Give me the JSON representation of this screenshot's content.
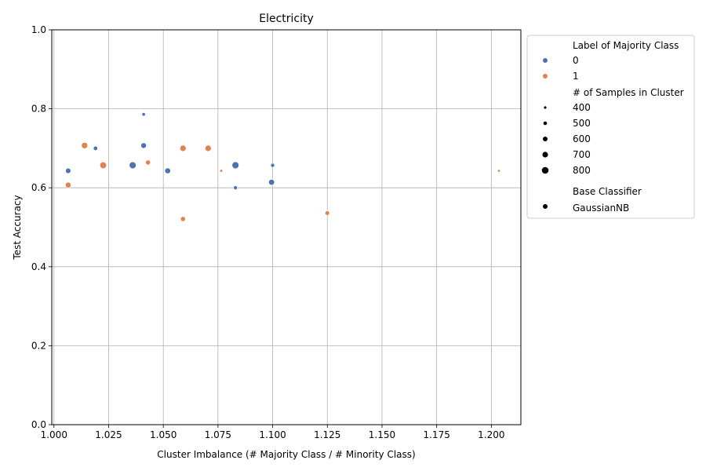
{
  "chart_data": {
    "type": "scatter",
    "title": "Electricity",
    "xlabel": "Cluster Imbalance (# Majority Class / # Minority Class)",
    "ylabel": "Test Accuracy",
    "xlim": [
      0.999,
      1.2135
    ],
    "ylim": [
      0.0,
      1.0
    ],
    "xticks": [
      "1.000",
      "1.025",
      "1.050",
      "1.075",
      "1.100",
      "1.125",
      "1.150",
      "1.175",
      "1.200"
    ],
    "yticks": [
      "0.0",
      "0.2",
      "0.4",
      "0.6",
      "0.8",
      "1.0"
    ],
    "grid": true,
    "legend_placement": "outside-right-top",
    "colors": {
      "0": "#4c72b0",
      "1": "#dd8452"
    },
    "legend": {
      "hue_title": "Label of Majority Class",
      "hue_entries": [
        {
          "label": "0",
          "color": "#4c72b0"
        },
        {
          "label": "1",
          "color": "#dd8452"
        }
      ],
      "size_title": "# of Samples in Cluster",
      "size_entries": [
        "400",
        "500",
        "600",
        "700",
        "800"
      ],
      "style_title": "Base Classifier",
      "style_entries": [
        "GaussianNB"
      ]
    },
    "series": [
      {
        "name": "0",
        "color": "#4c72b0",
        "points": [
          {
            "x": 1.0065,
            "y": 0.643,
            "n": 650
          },
          {
            "x": 1.019,
            "y": 0.7,
            "n": 560
          },
          {
            "x": 1.036,
            "y": 0.657,
            "n": 790
          },
          {
            "x": 1.041,
            "y": 0.786,
            "n": 480
          },
          {
            "x": 1.041,
            "y": 0.707,
            "n": 670
          },
          {
            "x": 1.052,
            "y": 0.643,
            "n": 690
          },
          {
            "x": 1.083,
            "y": 0.657,
            "n": 800
          },
          {
            "x": 1.083,
            "y": 0.6,
            "n": 520
          },
          {
            "x": 1.0995,
            "y": 0.614,
            "n": 700
          },
          {
            "x": 1.1,
            "y": 0.657,
            "n": 530
          }
        ]
      },
      {
        "name": "1",
        "color": "#dd8452",
        "points": [
          {
            "x": 1.0065,
            "y": 0.607,
            "n": 680
          },
          {
            "x": 1.014,
            "y": 0.707,
            "n": 740
          },
          {
            "x": 1.0225,
            "y": 0.657,
            "n": 780
          },
          {
            "x": 1.043,
            "y": 0.664,
            "n": 610
          },
          {
            "x": 1.059,
            "y": 0.7,
            "n": 730
          },
          {
            "x": 1.059,
            "y": 0.521,
            "n": 610
          },
          {
            "x": 1.0705,
            "y": 0.7,
            "n": 730
          },
          {
            "x": 1.0765,
            "y": 0.643,
            "n": 420
          },
          {
            "x": 1.125,
            "y": 0.536,
            "n": 580
          },
          {
            "x": 1.2035,
            "y": 0.643,
            "n": 410
          }
        ]
      }
    ]
  }
}
